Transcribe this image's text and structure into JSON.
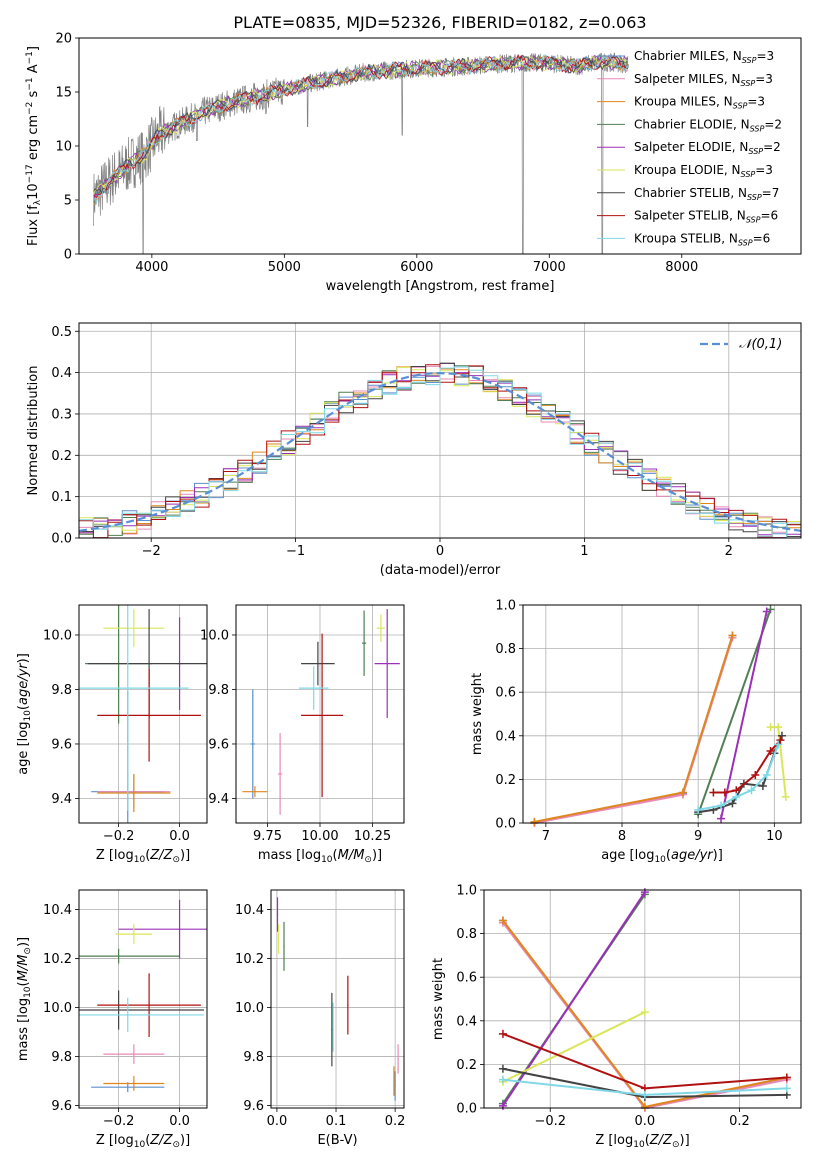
{
  "figure_title": "PLATE=0835, MJD=52326, FIBERID=0182, z=0.063",
  "models": [
    {
      "name": "Chabrier MILES",
      "nssp": "3",
      "color": "#5b8fd0"
    },
    {
      "name": "Salpeter MILES",
      "nssp": "3",
      "color": "#e889b8"
    },
    {
      "name": "Kroupa MILES",
      "nssp": "3",
      "color": "#e0861e"
    },
    {
      "name": "Chabrier ELODIE",
      "nssp": "2",
      "color": "#4f7f52"
    },
    {
      "name": "Salpeter ELODIE",
      "nssp": "2",
      "color": "#9b30b8"
    },
    {
      "name": "Kroupa ELODIE",
      "nssp": "3",
      "color": "#d9e65a"
    },
    {
      "name": "Chabrier STELIB",
      "nssp": "7",
      "color": "#444444"
    },
    {
      "name": "Salpeter STELIB",
      "nssp": "6",
      "color": "#b01010"
    },
    {
      "name": "Kroupa STELIB",
      "nssp": "6",
      "color": "#7fd8e6"
    }
  ],
  "chart_data": [
    {
      "id": "spectrum",
      "type": "line",
      "title": "PLATE=0835, MJD=52326, FIBERID=0182, z=0.063",
      "xlabel": "wavelength [Angstrom, rest frame]",
      "ylabel": "Flux [f_λ 10^-17 erg cm^-2 s^-1 A^-1]",
      "xlim": [
        3450,
        8900
      ],
      "ylim": [
        0,
        20
      ],
      "xticks": [
        4000,
        5000,
        6000,
        7000,
        8000
      ],
      "yticks": [
        0,
        5,
        10,
        15,
        20
      ],
      "grid": false,
      "legend": "top-right",
      "data_continuum": [
        [
          3560,
          5.2
        ],
        [
          3700,
          7.0
        ],
        [
          3850,
          8.5
        ],
        [
          3950,
          9.3
        ],
        [
          4050,
          11.0
        ],
        [
          4200,
          12.0
        ],
        [
          4400,
          13.2
        ],
        [
          4600,
          14.0
        ],
        [
          4800,
          14.6
        ],
        [
          5000,
          15.2
        ],
        [
          5200,
          15.8
        ],
        [
          5400,
          16.3
        ],
        [
          5600,
          16.8
        ],
        [
          5800,
          17.0
        ],
        [
          6000,
          17.2
        ],
        [
          6200,
          17.3
        ],
        [
          6400,
          17.4
        ],
        [
          6600,
          17.6
        ],
        [
          6800,
          17.7
        ],
        [
          7000,
          17.7
        ],
        [
          7200,
          17.4
        ],
        [
          7400,
          17.8
        ],
        [
          7600,
          17.6
        ],
        [
          7800,
          17.2
        ],
        [
          8000,
          16.6
        ],
        [
          8200,
          16.0
        ],
        [
          8400,
          15.6
        ],
        [
          8600,
          15.2
        ],
        [
          8800,
          15.0
        ]
      ],
      "absorption_features": [
        [
          3934,
          0
        ],
        [
          4340,
          10.5
        ],
        [
          4861,
          13.0
        ],
        [
          5175,
          11.8
        ],
        [
          5890,
          11.0
        ],
        [
          6800,
          0
        ],
        [
          7400,
          0
        ]
      ],
      "data_end_x": 7600
    },
    {
      "id": "residuals",
      "type": "step-histogram",
      "xlabel": "(data-model)/error",
      "ylabel": "Normed distribution",
      "xlim": [
        -2.5,
        2.5
      ],
      "ylim": [
        0,
        0.52
      ],
      "xticks": [
        -2,
        -1,
        0,
        1,
        2
      ],
      "yticks": [
        0.0,
        0.1,
        0.2,
        0.3,
        0.4,
        0.5
      ],
      "grid": true,
      "legend": "top-right",
      "reference_curve": {
        "label": "N(0,1)",
        "mean": 0,
        "sigma": 1,
        "color": "#5a8fd6"
      },
      "bin_width": 0.1,
      "noise_amplitude": 0.03
    },
    {
      "id": "age_vs_Z",
      "type": "errorbar",
      "xlabel": "Z [log10(Z/Z_sun)]",
      "ylabel": "age [log10(age/yr)]",
      "xlim": [
        -0.33,
        0.09
      ],
      "ylim": [
        9.31,
        10.11
      ],
      "xticks": [
        -0.2,
        0.0
      ],
      "yticks": [
        9.4,
        9.6,
        9.8,
        10.0
      ],
      "grid": true,
      "points": [
        {
          "model": 0,
          "x": -0.17,
          "y": 9.425,
          "xerr": 0.12,
          "yerr": 0.37
        },
        {
          "model": 1,
          "x": -0.15,
          "y": 9.425,
          "xerr": 0.12,
          "yerr": 0.06
        },
        {
          "model": 2,
          "x": -0.15,
          "y": 9.42,
          "xerr": 0.12,
          "yerr": 0.07
        },
        {
          "model": 3,
          "x": -0.2,
          "y": 9.895,
          "xerr": 0.11,
          "yerr": 0.22
        },
        {
          "model": 4,
          "x": 0.0,
          "y": 9.895,
          "xerr": 0.01,
          "yerr": 0.17
        },
        {
          "model": 5,
          "x": -0.15,
          "y": 10.025,
          "xerr": 0.1,
          "yerr": 0.07
        },
        {
          "model": 6,
          "x": -0.1,
          "y": 9.895,
          "xerr": 0.2,
          "yerr": 0.2
        },
        {
          "model": 7,
          "x": -0.1,
          "y": 9.705,
          "xerr": 0.17,
          "yerr": 0.17
        },
        {
          "model": 8,
          "x": -0.17,
          "y": 9.805,
          "xerr": 0.2,
          "yerr": 0.45
        }
      ]
    },
    {
      "id": "age_vs_mass",
      "type": "errorbar",
      "xlabel": "mass [log10(M/M_sun)]",
      "ylabel": "",
      "xlim": [
        9.6,
        10.4
      ],
      "ylim": [
        9.31,
        10.11
      ],
      "xticks": [
        9.75,
        10.0,
        10.25
      ],
      "yticks": [
        9.4,
        9.6,
        9.8,
        10.0
      ],
      "grid": true,
      "points": [
        {
          "model": 0,
          "x": 9.68,
          "y": 9.6,
          "xerr": 0.01,
          "yerr": 0.2
        },
        {
          "model": 1,
          "x": 9.81,
          "y": 9.49,
          "xerr": 0.01,
          "yerr": 0.15
        },
        {
          "model": 2,
          "x": 9.69,
          "y": 9.425,
          "xerr": 0.06,
          "yerr": 0.02
        },
        {
          "model": 3,
          "x": 10.21,
          "y": 9.97,
          "xerr": 0.01,
          "yerr": 0.12
        },
        {
          "model": 4,
          "x": 10.32,
          "y": 9.895,
          "xerr": 0.06,
          "yerr": 0.2
        },
        {
          "model": 5,
          "x": 10.29,
          "y": 10.025,
          "xerr": 0.02,
          "yerr": 0.05
        },
        {
          "model": 6,
          "x": 9.99,
          "y": 9.895,
          "xerr": 0.08,
          "yerr": 0.08
        },
        {
          "model": 7,
          "x": 10.01,
          "y": 9.705,
          "xerr": 0.1,
          "yerr": 0.3
        },
        {
          "model": 8,
          "x": 9.97,
          "y": 9.805,
          "xerr": 0.07,
          "yerr": 0.08
        }
      ]
    },
    {
      "id": "massweight_vs_age",
      "type": "line",
      "xlabel": "age [log10(age/yr)]",
      "ylabel": "mass weight",
      "xlim": [
        6.7,
        10.35
      ],
      "ylim": [
        0,
        1
      ],
      "xticks": [
        7,
        8,
        9,
        10
      ],
      "yticks": [
        0.0,
        0.2,
        0.4,
        0.6,
        0.8,
        1.0
      ],
      "grid": true,
      "series": [
        {
          "model": 0,
          "x": [
            6.85,
            8.8,
            9.45
          ],
          "y": [
            0.0,
            0.135,
            0.86
          ]
        },
        {
          "model": 1,
          "x": [
            6.85,
            8.8,
            9.45
          ],
          "y": [
            0.0,
            0.13,
            0.85
          ]
        },
        {
          "model": 2,
          "x": [
            6.85,
            8.8,
            9.45
          ],
          "y": [
            0.005,
            0.14,
            0.86
          ]
        },
        {
          "model": 3,
          "x": [
            9.0,
            9.95
          ],
          "y": [
            0.04,
            0.98
          ]
        },
        {
          "model": 4,
          "x": [
            9.3,
            9.9
          ],
          "y": [
            0.02,
            0.97
          ]
        },
        {
          "model": 5,
          "x": [
            9.95,
            10.05,
            10.15
          ],
          "y": [
            0.44,
            0.44,
            0.12
          ]
        },
        {
          "model": 6,
          "x": [
            9.0,
            9.2,
            9.45,
            9.6,
            9.85,
            10.0,
            10.1
          ],
          "y": [
            0.05,
            0.06,
            0.09,
            0.18,
            0.17,
            0.32,
            0.4
          ]
        },
        {
          "model": 7,
          "x": [
            9.2,
            9.35,
            9.5,
            9.75,
            9.95,
            10.08
          ],
          "y": [
            0.14,
            0.14,
            0.15,
            0.22,
            0.33,
            0.38
          ]
        },
        {
          "model": 8,
          "x": [
            9.0,
            9.3,
            9.5,
            9.7,
            9.9,
            10.05
          ],
          "y": [
            0.06,
            0.08,
            0.12,
            0.15,
            0.22,
            0.36
          ]
        }
      ]
    },
    {
      "id": "mass_vs_Z",
      "type": "errorbar",
      "xlabel": "Z [log10(Z/Z_sun)]",
      "ylabel": "mass [log10(M/M_sun)]",
      "xlim": [
        -0.33,
        0.09
      ],
      "ylim": [
        9.59,
        10.48
      ],
      "xticks": [
        -0.2,
        0.0
      ],
      "yticks": [
        9.6,
        9.8,
        10.0,
        10.2,
        10.4
      ],
      "grid": true,
      "points": [
        {
          "model": 0,
          "x": -0.17,
          "y": 9.675,
          "xerr": 0.12,
          "yerr": 0.02
        },
        {
          "model": 1,
          "x": -0.15,
          "y": 9.81,
          "xerr": 0.1,
          "yerr": 0.04
        },
        {
          "model": 2,
          "x": -0.15,
          "y": 9.69,
          "xerr": 0.1,
          "yerr": 0.03
        },
        {
          "model": 3,
          "x": -0.2,
          "y": 10.21,
          "xerr": 0.2,
          "yerr": 0.03
        },
        {
          "model": 4,
          "x": 0.0,
          "y": 10.32,
          "xerr": 0.2,
          "yerr": 0.12
        },
        {
          "model": 5,
          "x": -0.15,
          "y": 10.3,
          "xerr": 0.06,
          "yerr": 0.04
        },
        {
          "model": 6,
          "x": -0.2,
          "y": 9.99,
          "xerr": 0.28,
          "yerr": 0.08
        },
        {
          "model": 7,
          "x": -0.1,
          "y": 10.01,
          "xerr": 0.17,
          "yerr": 0.13
        },
        {
          "model": 8,
          "x": -0.17,
          "y": 9.97,
          "xerr": 0.25,
          "yerr": 0.07
        }
      ]
    },
    {
      "id": "mass_vs_ebv",
      "type": "errorbar",
      "xlabel": "E(B-V)",
      "ylabel": "",
      "xlim": [
        -0.01,
        0.215
      ],
      "ylim": [
        9.59,
        10.48
      ],
      "xticks": [
        0.0,
        0.1,
        0.2
      ],
      "yticks": [
        9.6,
        9.8,
        10.0,
        10.2,
        10.4
      ],
      "grid": true,
      "points": [
        {
          "model": 0,
          "x": 0.2,
          "y": 9.68,
          "xerr": 0.001,
          "yerr": 0.06
        },
        {
          "model": 1,
          "x": 0.205,
          "y": 9.79,
          "xerr": 0.001,
          "yerr": 0.06
        },
        {
          "model": 2,
          "x": 0.198,
          "y": 9.7,
          "xerr": 0.001,
          "yerr": 0.06
        },
        {
          "model": 3,
          "x": 0.012,
          "y": 10.25,
          "xerr": 0.001,
          "yerr": 0.1
        },
        {
          "model": 4,
          "x": 0.001,
          "y": 10.38,
          "xerr": 0.001,
          "yerr": 0.07
        },
        {
          "model": 5,
          "x": 0.003,
          "y": 10.28,
          "xerr": 0.001,
          "yerr": 0.06
        },
        {
          "model": 6,
          "x": 0.093,
          "y": 9.91,
          "xerr": 0.001,
          "yerr": 0.15
        },
        {
          "model": 7,
          "x": 0.12,
          "y": 10.01,
          "xerr": 0.001,
          "yerr": 0.12
        },
        {
          "model": 8,
          "x": 0.095,
          "y": 9.92,
          "xerr": 0.001,
          "yerr": 0.1
        }
      ]
    },
    {
      "id": "massweight_vs_Z",
      "type": "line",
      "xlabel": "Z [log10(Z/Z_sun)]",
      "ylabel": "mass weight",
      "xlim": [
        -0.34,
        0.33
      ],
      "ylim": [
        0,
        1
      ],
      "xticks": [
        -0.2,
        0.0,
        0.2
      ],
      "yticks": [
        0.0,
        0.2,
        0.4,
        0.6,
        0.8,
        1.0
      ],
      "grid": true,
      "series": [
        {
          "model": 0,
          "x": [
            -0.3,
            0.0,
            0.3
          ],
          "y": [
            0.86,
            0.0,
            0.14
          ]
        },
        {
          "model": 1,
          "x": [
            -0.3,
            0.0,
            0.3
          ],
          "y": [
            0.85,
            0.0,
            0.13
          ]
        },
        {
          "model": 2,
          "x": [
            -0.3,
            0.0,
            0.3
          ],
          "y": [
            0.86,
            0.005,
            0.14
          ]
        },
        {
          "model": 3,
          "x": [
            -0.3,
            0.0
          ],
          "y": [
            0.02,
            0.98
          ]
        },
        {
          "model": 4,
          "x": [
            -0.3,
            0.0
          ],
          "y": [
            0.01,
            0.99
          ]
        },
        {
          "model": 5,
          "x": [
            -0.3,
            0.0
          ],
          "y": [
            0.12,
            0.44
          ]
        },
        {
          "model": 6,
          "x": [
            -0.3,
            0.0,
            0.3
          ],
          "y": [
            0.18,
            0.05,
            0.06
          ]
        },
        {
          "model": 7,
          "x": [
            -0.3,
            0.0,
            0.3
          ],
          "y": [
            0.34,
            0.09,
            0.14
          ]
        },
        {
          "model": 8,
          "x": [
            -0.3,
            0.0,
            0.3
          ],
          "y": [
            0.13,
            0.06,
            0.09
          ]
        }
      ]
    }
  ]
}
